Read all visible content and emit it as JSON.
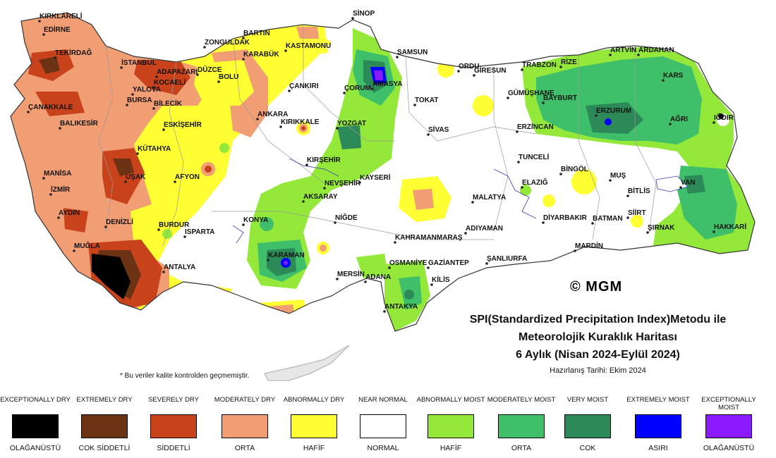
{
  "title": {
    "line1": "SPI(Standardized Precipitation Index)Metodu ile",
    "line2": "Meteorolojik Kuraklık Haritası",
    "line3": "6 Aylık (Nisan 2024-Eylül 2024)",
    "prepared": "Hazırlanış Tarihi: Ekim 2024"
  },
  "note": "* Bu veriler kalite kontrolden geçmemiştir.",
  "copyright": "© MGM",
  "colors": {
    "exceptionally_dry": "#000000",
    "extremely_dry": "#6b3213",
    "severely_dry": "#c8431c",
    "moderately_dry": "#f29e74",
    "abnormally_dry": "#ffff33",
    "near_normal": "#ffffff",
    "abnormally_moist": "#93e83a",
    "moderately_moist": "#3fbf6a",
    "very_moist": "#2c8a58",
    "extremely_moist": "#0000ff",
    "exceptionally_moist": "#8a1aff"
  },
  "legend": [
    {
      "en": "EXCEPTIONALLY DRY",
      "tr": "OLAĞANÜSTÜ",
      "color": "#000000"
    },
    {
      "en": "EXTREMELY DRY",
      "tr": "COK SİDDETLİ",
      "color": "#6b3213"
    },
    {
      "en": "SEVERELY DRY",
      "tr": "SİDDETLİ",
      "color": "#c8431c"
    },
    {
      "en": "MODERATELY DRY",
      "tr": "ORTA",
      "color": "#f29e74"
    },
    {
      "en": "ABNORMALLY DRY",
      "tr": "HAFİF",
      "color": "#ffff33"
    },
    {
      "en": "NEAR NORMAL",
      "tr": "NORMAL",
      "color": "#ffffff"
    },
    {
      "en": "ABNORMALLY MOIST",
      "tr": "HAFİF",
      "color": "#93e83a"
    },
    {
      "en": "MODERATELY MOIST",
      "tr": "ORTA",
      "color": "#3fbf6a"
    },
    {
      "en": "VERY MOIST",
      "tr": "COK",
      "color": "#2c8a58"
    },
    {
      "en": "EXTREMELY MOIST",
      "tr": "ASIRI",
      "color": "#0000ff"
    },
    {
      "en": "EXCEPTIONALLY MOIST",
      "tr": "OLAĞANÜSTÜ",
      "color": "#8a1aff"
    }
  ],
  "cities": [
    "KIRKLARELİ",
    "EDİRNE",
    "TEKİRDAĞ",
    "İSTANBUL",
    "ÇANAKKALE",
    "BALIKESİR",
    "BURSA",
    "YALOVA",
    "ADAPAZARI",
    "KOCAELİ",
    "DÜZCE",
    "BOLU",
    "ZONGULDAK",
    "BARTIN",
    "KARABÜK",
    "KASTAMONU",
    "SİNOP",
    "SAMSUN",
    "ORDU",
    "GİRESUN",
    "TRABZON",
    "RİZE",
    "ARTVİN",
    "ARDAHAN",
    "KARS",
    "IĞDIR",
    "AĞRI",
    "ERZURUM",
    "BAYBURT",
    "GÜMÜŞHANE",
    "ERZİNCAN",
    "TOKAT",
    "AMASYA",
    "ÇORUM",
    "ÇANKIRI",
    "ANKARA",
    "KIRIKKALE",
    "YOZGAT",
    "SİVAS",
    "BİLECİK",
    "ESKİŞEHİR",
    "KÜTAHYA",
    "MANİSA",
    "İZMİR",
    "UŞAK",
    "AFYON",
    "AYDIN",
    "DENİZLİ",
    "MUĞLA",
    "BURDUR",
    "ISPARTA",
    "ANTALYA",
    "KONYA",
    "KARAMAN",
    "KIRŞEHİR",
    "NEVŞEHİR",
    "AKSARAY",
    "KAYSERİ",
    "NİĞDE",
    "MERSİN",
    "ADANA",
    "OSMANİYE",
    "GAZİANTEP",
    "KİLİS",
    "ANTAKYA",
    "KAHRAMANMARAŞ",
    "ADIYAMAN",
    "ŞANLIURFA",
    "MALATYA",
    "ELAZIĞ",
    "TUNCELİ",
    "BİNGÖL",
    "MUŞ",
    "BİTLİS",
    "VAN",
    "HAKKARİ",
    "ŞIRNAK",
    "SİİRT",
    "BATMAN",
    "MARDİN",
    "DİYARBAKIR"
  ]
}
